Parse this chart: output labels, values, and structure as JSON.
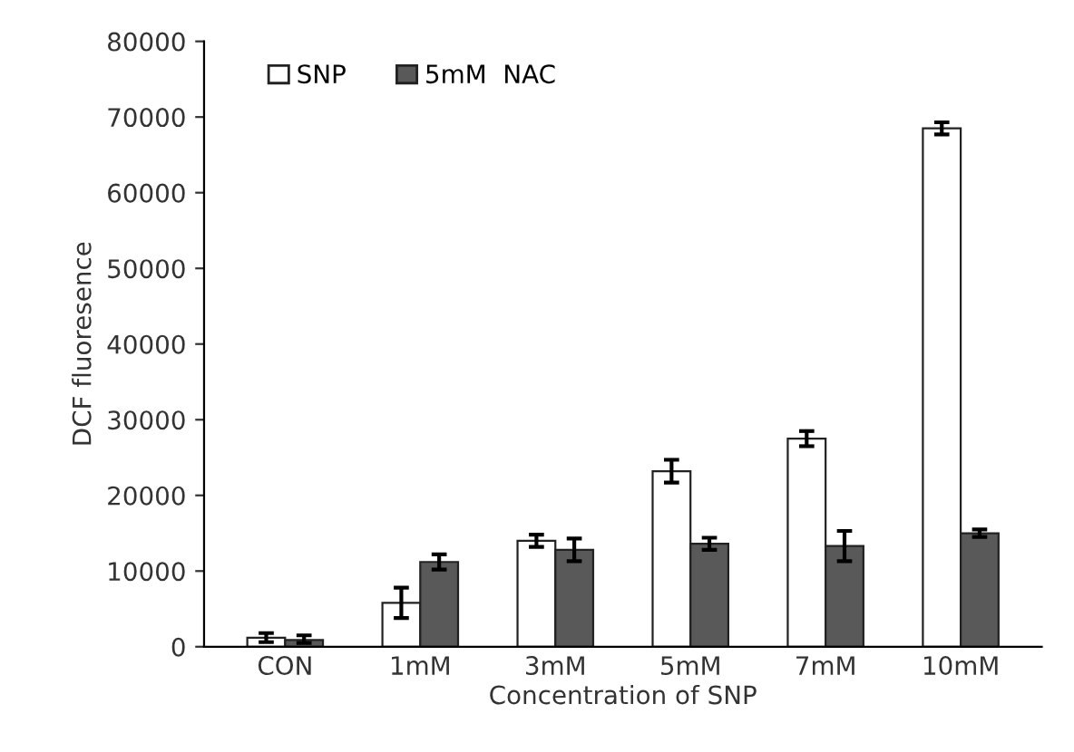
{
  "chart_data": {
    "type": "bar",
    "xlabel": "Concentration of SNP",
    "ylabel": "DCF fluoresence",
    "categories": [
      "CON",
      "1mM",
      "3mM",
      "5mM",
      "7mM",
      "10mM"
    ],
    "series": [
      {
        "name": "SNP",
        "color": "#ffffff",
        "values": [
          1200,
          5800,
          14000,
          23200,
          27500,
          68500
        ],
        "errors": [
          600,
          2000,
          800,
          1500,
          1000,
          800
        ]
      },
      {
        "name": "5mM  NAC",
        "color": "#595959",
        "values": [
          900,
          11200,
          12800,
          13600,
          13300,
          15000
        ],
        "errors": [
          [
            400,
            600
          ],
          1000,
          1500,
          800,
          2000,
          500
        ]
      }
    ],
    "ylim": [
      0,
      80000
    ],
    "yticks": [
      0,
      10000,
      20000,
      30000,
      40000,
      50000,
      60000,
      70000,
      80000
    ],
    "grid": false,
    "legend": "top left"
  }
}
